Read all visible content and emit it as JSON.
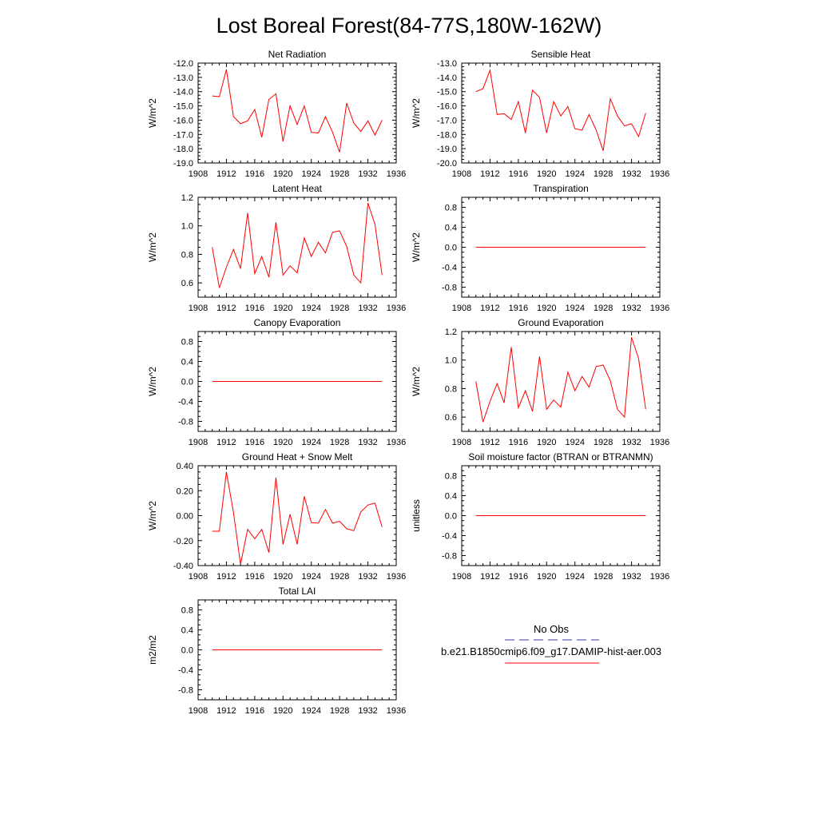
{
  "title": "Lost Boreal Forest(84-77S,180W-162W)",
  "colors": {
    "model": "#ff0000",
    "obs": "#3a3aa8",
    "axis": "#000000"
  },
  "legend": {
    "obs_label": "No Obs",
    "model_label": "b.e21.B1850cmip6.f09_g17.DAMIP-hist-aer.003"
  },
  "chart_data": [
    {
      "type": "line",
      "title": "Net Radiation",
      "ylabel": "W/m^2",
      "xlim": [
        1908,
        1936
      ],
      "ylim": [
        -19.0,
        -12.0
      ],
      "yticks": [
        -19.0,
        -18.0,
        -17.0,
        -16.0,
        -15.0,
        -14.0,
        -13.0,
        -12.0
      ],
      "ytick_labels": [
        "-19.0",
        "-18.0",
        "-17.0",
        "-16.0",
        "-15.0",
        "-14.0",
        "-13.0",
        "-12.0"
      ],
      "xticks": [
        1908,
        1912,
        1916,
        1920,
        1924,
        1928,
        1932,
        1936
      ],
      "x": [
        1910,
        1911,
        1912,
        1913,
        1914,
        1915,
        1916,
        1917,
        1918,
        1919,
        1920,
        1921,
        1922,
        1923,
        1924,
        1925,
        1926,
        1927,
        1928,
        1929,
        1930,
        1931,
        1932,
        1933,
        1934
      ],
      "series": [
        {
          "values": [
            -14.3,
            -14.35,
            -12.45,
            -15.75,
            -16.25,
            -16.05,
            -15.25,
            -17.2,
            -14.55,
            -14.15,
            -17.5,
            -15.0,
            -16.3,
            -15.0,
            -16.85,
            -16.9,
            -15.75,
            -16.85,
            -18.25,
            -14.8,
            -16.2,
            -16.8,
            -16.05,
            -17.05,
            -16.0
          ]
        }
      ]
    },
    {
      "type": "line",
      "title": "Sensible Heat",
      "ylabel": "W/m^2",
      "xlim": [
        1908,
        1936
      ],
      "ylim": [
        -20.0,
        -13.0
      ],
      "yticks": [
        -20.0,
        -19.0,
        -18.0,
        -17.0,
        -16.0,
        -15.0,
        -14.0,
        -13.0
      ],
      "ytick_labels": [
        "-20.0",
        "-19.0",
        "-18.0",
        "-17.0",
        "-16.0",
        "-15.0",
        "-14.0",
        "-13.0"
      ],
      "xticks": [
        1908,
        1912,
        1916,
        1920,
        1924,
        1928,
        1932,
        1936
      ],
      "x": [
        1910,
        1911,
        1912,
        1913,
        1914,
        1915,
        1916,
        1917,
        1918,
        1919,
        1920,
        1921,
        1922,
        1923,
        1924,
        1925,
        1926,
        1927,
        1928,
        1929,
        1930,
        1931,
        1932,
        1933,
        1934
      ],
      "series": [
        {
          "values": [
            -15.0,
            -14.8,
            -13.5,
            -16.6,
            -16.55,
            -16.95,
            -15.7,
            -17.9,
            -14.9,
            -15.4,
            -17.9,
            -15.7,
            -16.7,
            -16.05,
            -17.6,
            -17.7,
            -16.6,
            -17.7,
            -19.15,
            -15.5,
            -16.7,
            -17.4,
            -17.25,
            -18.15,
            -16.5
          ]
        }
      ]
    },
    {
      "type": "line",
      "title": "Latent Heat",
      "ylabel": "W/m^2",
      "xlim": [
        1908,
        1936
      ],
      "ylim": [
        0.5,
        1.2
      ],
      "yticks": [
        0.6,
        0.8,
        1.0,
        1.2
      ],
      "ytick_labels": [
        "0.6",
        "0.8",
        "1.0",
        "1.2"
      ],
      "xticks": [
        1908,
        1912,
        1916,
        1920,
        1924,
        1928,
        1932,
        1936
      ],
      "x": [
        1910,
        1911,
        1912,
        1913,
        1914,
        1915,
        1916,
        1917,
        1918,
        1919,
        1920,
        1921,
        1922,
        1923,
        1924,
        1925,
        1926,
        1927,
        1928,
        1929,
        1930,
        1931,
        1932,
        1933,
        1934
      ],
      "series": [
        {
          "values": [
            0.85,
            0.565,
            0.71,
            0.835,
            0.7,
            1.09,
            0.665,
            0.785,
            0.64,
            1.025,
            0.655,
            0.72,
            0.67,
            0.915,
            0.785,
            0.885,
            0.81,
            0.955,
            0.965,
            0.855,
            0.655,
            0.6,
            1.16,
            1.01,
            0.655
          ]
        }
      ]
    },
    {
      "type": "line",
      "title": "Transpiration",
      "ylabel": "W/m^2",
      "xlim": [
        1908,
        1936
      ],
      "ylim": [
        -1.0,
        1.0
      ],
      "yticks": [
        -0.8,
        -0.4,
        0.0,
        0.4,
        0.8
      ],
      "ytick_labels": [
        "-0.8",
        "-0.4",
        "0.0",
        "0.4",
        "0.8"
      ],
      "xticks": [
        1908,
        1912,
        1916,
        1920,
        1924,
        1928,
        1932,
        1936
      ],
      "x": [
        1910,
        1911,
        1912,
        1913,
        1914,
        1915,
        1916,
        1917,
        1918,
        1919,
        1920,
        1921,
        1922,
        1923,
        1924,
        1925,
        1926,
        1927,
        1928,
        1929,
        1930,
        1931,
        1932,
        1933,
        1934
      ],
      "series": [
        {
          "values": [
            0,
            0,
            0,
            0,
            0,
            0,
            0,
            0,
            0,
            0,
            0,
            0,
            0,
            0,
            0,
            0,
            0,
            0,
            0,
            0,
            0,
            0,
            0,
            0,
            0
          ]
        }
      ]
    },
    {
      "type": "line",
      "title": "Canopy Evaporation",
      "ylabel": "W/m^2",
      "xlim": [
        1908,
        1936
      ],
      "ylim": [
        -1.0,
        1.0
      ],
      "yticks": [
        -0.8,
        -0.4,
        0.0,
        0.4,
        0.8
      ],
      "ytick_labels": [
        "-0.8",
        "-0.4",
        "0.0",
        "0.4",
        "0.8"
      ],
      "xticks": [
        1908,
        1912,
        1916,
        1920,
        1924,
        1928,
        1932,
        1936
      ],
      "x": [
        1910,
        1911,
        1912,
        1913,
        1914,
        1915,
        1916,
        1917,
        1918,
        1919,
        1920,
        1921,
        1922,
        1923,
        1924,
        1925,
        1926,
        1927,
        1928,
        1929,
        1930,
        1931,
        1932,
        1933,
        1934
      ],
      "series": [
        {
          "values": [
            0,
            0,
            0,
            0,
            0,
            0,
            0,
            0,
            0,
            0,
            0,
            0,
            0,
            0,
            0,
            0,
            0,
            0,
            0,
            0,
            0,
            0,
            0,
            0,
            0
          ]
        }
      ]
    },
    {
      "type": "line",
      "title": "Ground Evaporation",
      "ylabel": "W/m^2",
      "xlim": [
        1908,
        1936
      ],
      "ylim": [
        0.5,
        1.2
      ],
      "yticks": [
        0.6,
        0.8,
        1.0,
        1.2
      ],
      "ytick_labels": [
        "0.6",
        "0.8",
        "1.0",
        "1.2"
      ],
      "xticks": [
        1908,
        1912,
        1916,
        1920,
        1924,
        1928,
        1932,
        1936
      ],
      "x": [
        1910,
        1911,
        1912,
        1913,
        1914,
        1915,
        1916,
        1917,
        1918,
        1919,
        1920,
        1921,
        1922,
        1923,
        1924,
        1925,
        1926,
        1927,
        1928,
        1929,
        1930,
        1931,
        1932,
        1933,
        1934
      ],
      "series": [
        {
          "values": [
            0.85,
            0.565,
            0.71,
            0.835,
            0.7,
            1.09,
            0.665,
            0.785,
            0.64,
            1.025,
            0.655,
            0.72,
            0.67,
            0.915,
            0.785,
            0.885,
            0.81,
            0.955,
            0.965,
            0.855,
            0.655,
            0.6,
            1.16,
            1.01,
            0.655
          ]
        }
      ]
    },
    {
      "type": "line",
      "title": "Ground Heat + Snow Melt",
      "ylabel": "W/m^2",
      "xlim": [
        1908,
        1936
      ],
      "ylim": [
        -0.4,
        0.4
      ],
      "yticks": [
        -0.4,
        -0.2,
        0.0,
        0.2,
        0.4
      ],
      "ytick_labels": [
        "-0.40",
        "-0.20",
        "0.00",
        "0.20",
        "0.40"
      ],
      "xticks": [
        1908,
        1912,
        1916,
        1920,
        1924,
        1928,
        1932,
        1936
      ],
      "x": [
        1910,
        1911,
        1912,
        1913,
        1914,
        1915,
        1916,
        1917,
        1918,
        1919,
        1920,
        1921,
        1922,
        1923,
        1924,
        1925,
        1926,
        1927,
        1928,
        1929,
        1930,
        1931,
        1932,
        1933,
        1934
      ],
      "series": [
        {
          "values": [
            -0.125,
            -0.125,
            0.35,
            0.025,
            -0.39,
            -0.11,
            -0.185,
            -0.11,
            -0.295,
            0.305,
            -0.23,
            0.01,
            -0.23,
            0.155,
            -0.055,
            -0.06,
            0.05,
            -0.06,
            -0.045,
            -0.105,
            -0.12,
            0.03,
            0.085,
            0.1,
            -0.09
          ]
        }
      ]
    },
    {
      "type": "line",
      "title": "Soil moisture factor (BTRAN or BTRANMN)",
      "ylabel": "unitless",
      "xlim": [
        1908,
        1936
      ],
      "ylim": [
        -1.0,
        1.0
      ],
      "yticks": [
        -0.8,
        -0.4,
        0.0,
        0.4,
        0.8
      ],
      "ytick_labels": [
        "-0.8",
        "-0.4",
        "0.0",
        "0.4",
        "0.8"
      ],
      "xticks": [
        1908,
        1912,
        1916,
        1920,
        1924,
        1928,
        1932,
        1936
      ],
      "x": [
        1910,
        1911,
        1912,
        1913,
        1914,
        1915,
        1916,
        1917,
        1918,
        1919,
        1920,
        1921,
        1922,
        1923,
        1924,
        1925,
        1926,
        1927,
        1928,
        1929,
        1930,
        1931,
        1932,
        1933,
        1934
      ],
      "series": [
        {
          "values": [
            0,
            0,
            0,
            0,
            0,
            0,
            0,
            0,
            0,
            0,
            0,
            0,
            0,
            0,
            0,
            0,
            0,
            0,
            0,
            0,
            0,
            0,
            0,
            0,
            0
          ]
        }
      ]
    },
    {
      "type": "line",
      "title": "Total LAI",
      "ylabel": "m2/m2",
      "xlim": [
        1908,
        1936
      ],
      "ylim": [
        -1.0,
        1.0
      ],
      "yticks": [
        -0.8,
        -0.4,
        0.0,
        0.4,
        0.8
      ],
      "ytick_labels": [
        "-0.8",
        "-0.4",
        "0.0",
        "0.4",
        "0.8"
      ],
      "xticks": [
        1908,
        1912,
        1916,
        1920,
        1924,
        1928,
        1932,
        1936
      ],
      "x": [
        1910,
        1911,
        1912,
        1913,
        1914,
        1915,
        1916,
        1917,
        1918,
        1919,
        1920,
        1921,
        1922,
        1923,
        1924,
        1925,
        1926,
        1927,
        1928,
        1929,
        1930,
        1931,
        1932,
        1933,
        1934
      ],
      "series": [
        {
          "values": [
            0,
            0,
            0,
            0,
            0,
            0,
            0,
            0,
            0,
            0,
            0,
            0,
            0,
            0,
            0,
            0,
            0,
            0,
            0,
            0,
            0,
            0,
            0,
            0,
            0
          ]
        }
      ]
    }
  ]
}
